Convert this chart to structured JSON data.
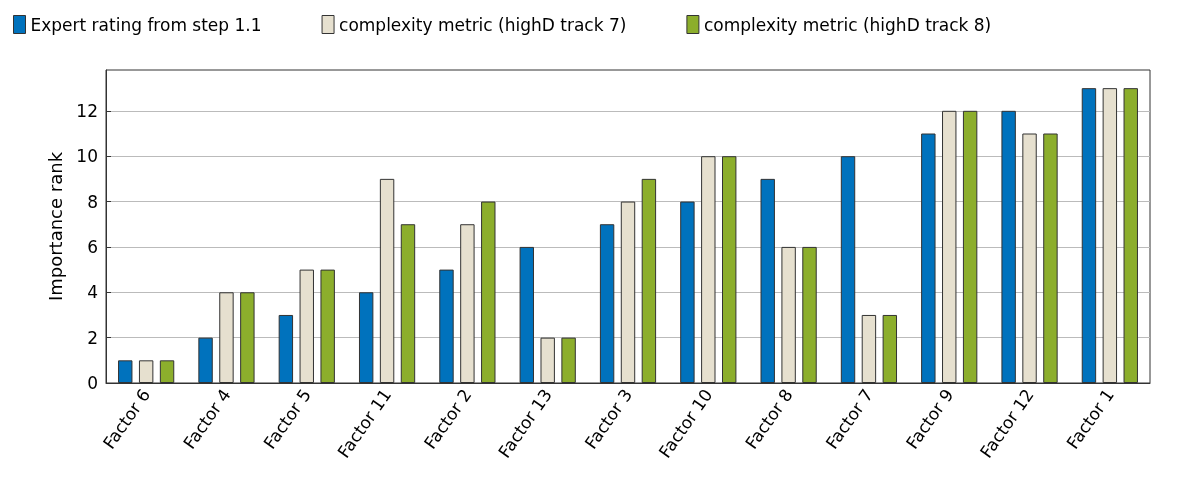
{
  "chart_data": {
    "type": "bar",
    "ylabel": "Importance rank",
    "categories": [
      "Factor 6",
      "Factor 4",
      "Factor 5",
      "Factor 11",
      "Factor 2",
      "Factor 13",
      "Factor 3",
      "Factor 10",
      "Factor 8",
      "Factor 7",
      "Factor 9",
      "Factor 12",
      "Factor 1"
    ],
    "series": [
      {
        "name": "Expert rating from step 1.1",
        "color": "#0072bd",
        "values": [
          1,
          2,
          3,
          4,
          5,
          6,
          7,
          8,
          9,
          10,
          11,
          12,
          13
        ]
      },
      {
        "name": "complexity metric (highD track 7)",
        "color": "#e6e0cf",
        "values": [
          1,
          4,
          5,
          9,
          7,
          2,
          8,
          10,
          6,
          3,
          12,
          11,
          13
        ]
      },
      {
        "name": "complexity metric (highD track 8)",
        "color": "#8cae2c",
        "values": [
          1,
          4,
          5,
          7,
          8,
          2,
          9,
          10,
          6,
          3,
          12,
          11,
          13
        ]
      }
    ],
    "ylim": [
      0,
      13.8
    ],
    "yticks": [
      0,
      2,
      4,
      6,
      8,
      10,
      12
    ],
    "grid": "y",
    "legend": "top"
  }
}
